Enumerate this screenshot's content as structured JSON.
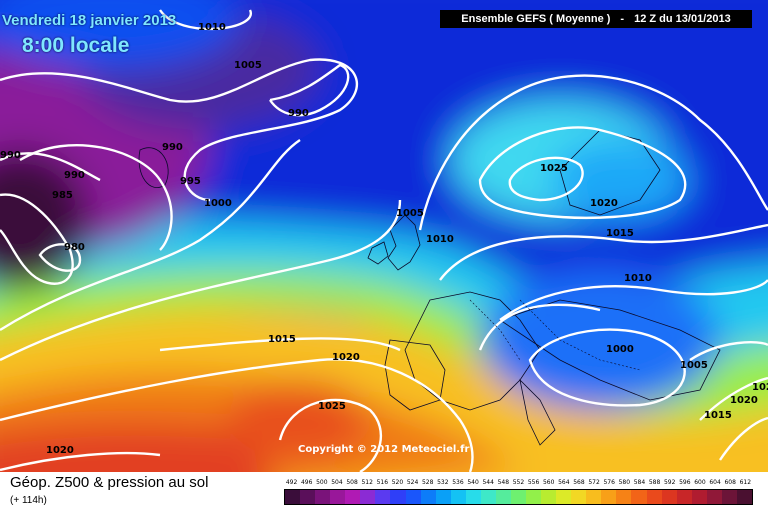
{
  "header": {
    "date": "Vendredi 18 janvier 2013",
    "time": "8:00 locale",
    "model": "Ensemble GEFS ( Moyenne )",
    "run_sep": "-",
    "run": "12 Z du 13/01/2013"
  },
  "map": {
    "type": "geopotential-z500-and-msl-pressure",
    "isobar_labels": [
      "1010",
      "1005",
      "990",
      "990",
      "990",
      "990",
      "985",
      "980",
      "995",
      "1000",
      "1005",
      "1010",
      "1025",
      "1020",
      "1015",
      "1010",
      "1000",
      "1005",
      "1015",
      "1020",
      "1015",
      "1020",
      "1025",
      "1020",
      "1020",
      "1015",
      "102"
    ]
  },
  "copyright": "Copyright © 2012 Meteociel.fr",
  "footer": {
    "title": "Géop. Z500 & pression au sol",
    "subtitle": "(+ 114h)"
  },
  "legend": {
    "ticks": [
      "492",
      "496",
      "500",
      "504",
      "508",
      "512",
      "516",
      "520",
      "524",
      "528",
      "532",
      "536",
      "540",
      "544",
      "548",
      "552",
      "556",
      "560",
      "564",
      "568",
      "572",
      "576",
      "580",
      "584",
      "588",
      "592",
      "596",
      "600",
      "604",
      "608",
      "612"
    ],
    "colors": [
      "#3a0d3a",
      "#5a0f5a",
      "#7a137a",
      "#99179a",
      "#b01ab4",
      "#8b2bd4",
      "#5b3af0",
      "#2f3ff8",
      "#1a56fb",
      "#0d7cf9",
      "#0aa0f7",
      "#14c2f4",
      "#28dcea",
      "#3ee8c8",
      "#55ec9c",
      "#6ef070",
      "#92f04a",
      "#b8ec30",
      "#dcea28",
      "#f2d824",
      "#f8bd1e",
      "#f8a018",
      "#f68216",
      "#f26418",
      "#ea4a1c",
      "#dc3620",
      "#c82628",
      "#b01c30",
      "#901838",
      "#6c1438",
      "#4a1030"
    ]
  }
}
